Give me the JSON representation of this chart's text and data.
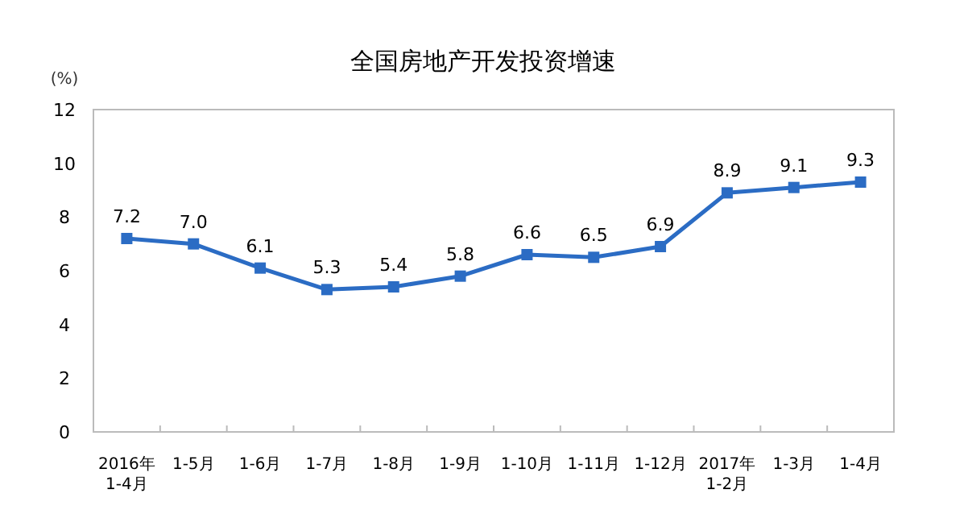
{
  "chart_data": {
    "type": "line",
    "title": "全国房地产开发投资增速",
    "ylabel": "(%)",
    "categories": [
      "2016年\n1-4月",
      "1-5月",
      "1-6月",
      "1-7月",
      "1-8月",
      "1-9月",
      "1-10月",
      "1-11月",
      "1-12月",
      "2017年\n1-2月",
      "1-3月",
      "1-4月"
    ],
    "values": [
      7.2,
      7.0,
      6.1,
      5.3,
      5.4,
      5.8,
      6.6,
      6.5,
      6.9,
      8.9,
      9.1,
      9.3
    ],
    "value_labels": [
      "7.2",
      "7.0",
      "6.1",
      "5.3",
      "5.4",
      "5.8",
      "6.6",
      "6.5",
      "6.9",
      "8.9",
      "9.1",
      "9.3"
    ],
    "color": "#2b6cc4",
    "marker": "square",
    "ylim": [
      0,
      12
    ],
    "yticks": [
      0,
      2,
      4,
      6,
      8,
      10,
      12
    ]
  }
}
